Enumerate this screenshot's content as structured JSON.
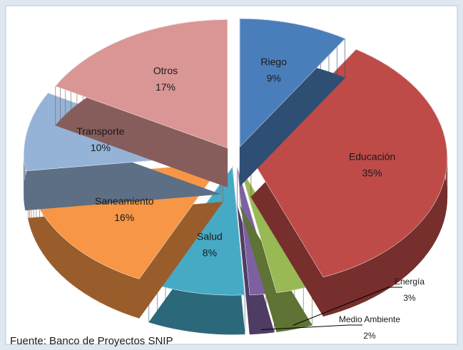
{
  "chart_data": {
    "type": "pie3d",
    "categories": [
      "Riego",
      "Educación",
      "Energía",
      "Medio Ambiente",
      "Salud",
      "Saneamiento",
      "Transporte",
      "Otros"
    ],
    "values": [
      9,
      35,
      3,
      2,
      8,
      16,
      10,
      17
    ],
    "value_labels": [
      "9%",
      "35%",
      "3%",
      "2%",
      "8%",
      "16%",
      "10%",
      "17%"
    ],
    "colors": [
      "#4a7ebb",
      "#be4b48",
      "#98b954",
      "#7d60a0",
      "#46aac5",
      "#f79646",
      "#95b3d7",
      "#d99694"
    ],
    "source": "Fuente: Banco de Proyectos SNIP"
  }
}
